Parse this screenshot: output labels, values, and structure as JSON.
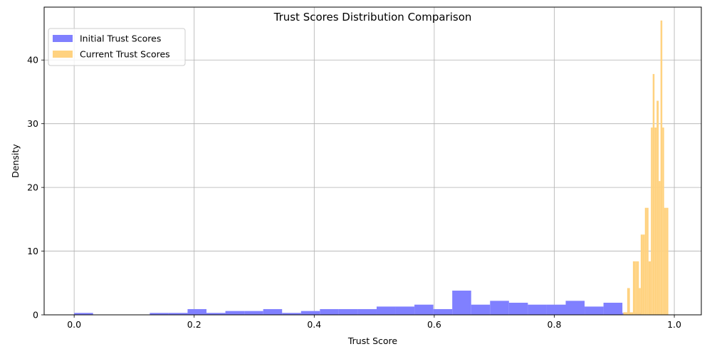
{
  "chart_data": {
    "type": "bar",
    "title": "Trust Scores Distribution Comparison",
    "xlabel": "Trust Score",
    "ylabel": "Density",
    "xlim": [
      -0.05,
      1.045
    ],
    "ylim": [
      0,
      48.3
    ],
    "xticks": [
      0.0,
      0.2,
      0.4,
      0.6,
      0.8,
      1.0
    ],
    "xtick_labels": [
      "0.0",
      "0.2",
      "0.4",
      "0.6",
      "0.8",
      "1.0"
    ],
    "yticks": [
      0,
      10,
      20,
      30,
      40
    ],
    "ytick_labels": [
      "0",
      "10",
      "20",
      "30",
      "40"
    ],
    "grid": true,
    "legend_position": "upper-left",
    "series": [
      {
        "name": "Initial Trust Scores",
        "color": "#8080ff",
        "bin_edges": [
          0.0,
          0.0315,
          0.063,
          0.0945,
          0.126,
          0.1575,
          0.189,
          0.2205,
          0.252,
          0.2835,
          0.315,
          0.3465,
          0.378,
          0.4095,
          0.441,
          0.4725,
          0.504,
          0.5355,
          0.567,
          0.5985,
          0.63,
          0.6615,
          0.693,
          0.7245,
          0.756,
          0.7875,
          0.819,
          0.8505,
          0.882,
          0.9135,
          0.945
        ],
        "values": [
          0.3,
          0,
          0,
          0,
          0.3,
          0.3,
          0.9,
          0.3,
          0.6,
          0.6,
          0.9,
          0.3,
          0.6,
          0.9,
          0.9,
          0.9,
          1.3,
          1.3,
          1.6,
          0.9,
          3.8,
          1.6,
          2.2,
          1.9,
          1.6,
          1.6,
          2.2,
          1.3,
          1.9,
          0.3
        ]
      },
      {
        "name": "Current Trust Scores",
        "color": "#ffd280",
        "bin_edges": [
          0.915,
          0.9215,
          0.926,
          0.931,
          0.935,
          0.938,
          0.941,
          0.944,
          0.947,
          0.951,
          0.954,
          0.957,
          0.961,
          0.964,
          0.967,
          0.9705,
          0.974,
          0.977,
          0.98,
          0.983,
          0.986,
          0.99,
          0.994
        ],
        "values": [
          0.4,
          4.2,
          0.4,
          8.4,
          8.4,
          8.4,
          4.2,
          12.6,
          12.6,
          16.8,
          16.8,
          8.4,
          29.4,
          37.8,
          29.4,
          33.6,
          21.0,
          46.2,
          29.4,
          16.8,
          16.8,
          0
        ]
      }
    ]
  }
}
